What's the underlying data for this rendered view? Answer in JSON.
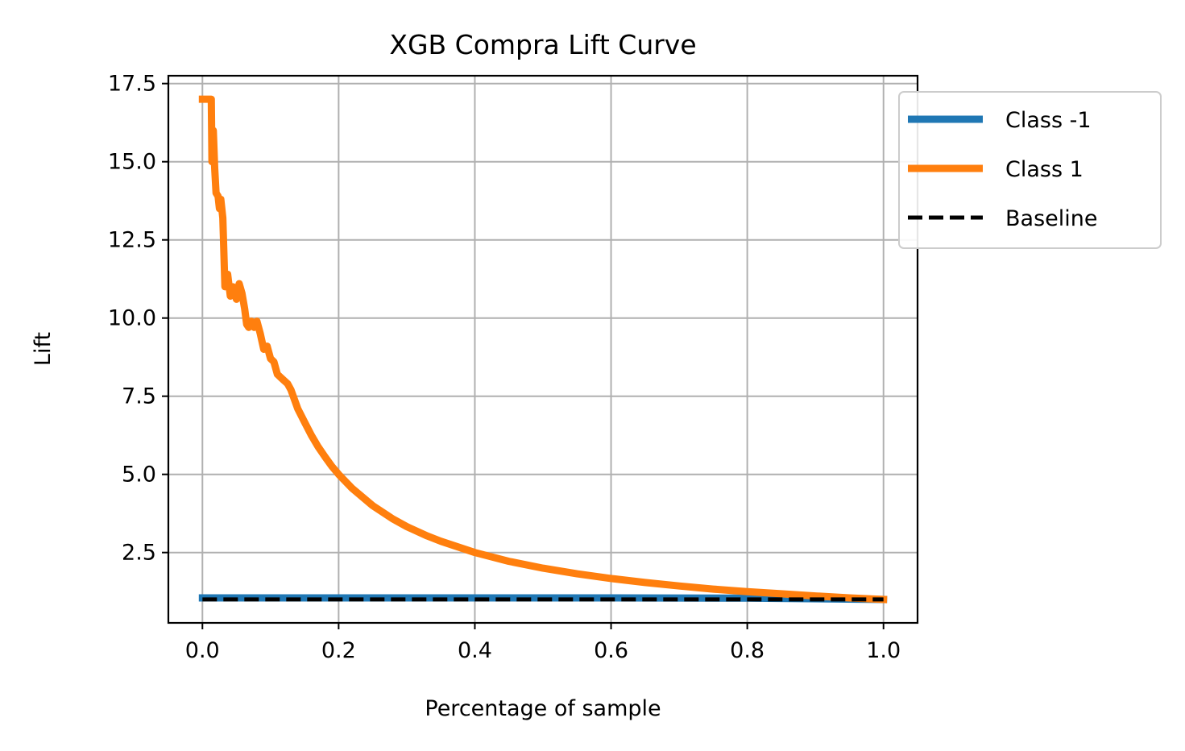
{
  "chart_data": {
    "type": "line",
    "title": "XGB Compra Lift Curve",
    "xlabel": "Percentage of sample",
    "ylabel": "Lift",
    "xlim": [
      -0.05,
      1.05
    ],
    "ylim": [
      0.25,
      17.75
    ],
    "x_ticks": [
      0.0,
      0.2,
      0.4,
      0.6,
      0.8,
      1.0
    ],
    "x_tick_labels": [
      "0.0",
      "0.2",
      "0.4",
      "0.6",
      "0.8",
      "1.0"
    ],
    "y_ticks": [
      2.5,
      5.0,
      7.5,
      10.0,
      12.5,
      15.0,
      17.5
    ],
    "y_tick_labels": [
      "2.5",
      "5.0",
      "7.5",
      "10.0",
      "12.5",
      "15.0",
      "17.5"
    ],
    "grid": true,
    "legend_position": "upper-right, outside plot area",
    "series": [
      {
        "name": "Class -1",
        "color": "#1f77b4",
        "style": "solid",
        "points": [
          [
            0.0,
            1.05
          ],
          [
            0.2,
            1.05
          ],
          [
            0.4,
            1.05
          ],
          [
            0.6,
            1.05
          ],
          [
            0.8,
            1.04
          ],
          [
            1.0,
            1.0
          ]
        ]
      },
      {
        "name": "Class 1",
        "color": "#ff7f0e",
        "style": "solid",
        "points": [
          [
            0.0,
            17.0
          ],
          [
            0.013,
            17.0
          ],
          [
            0.014,
            15.0
          ],
          [
            0.016,
            16.0
          ],
          [
            0.018,
            14.8
          ],
          [
            0.02,
            14.0
          ],
          [
            0.023,
            13.9
          ],
          [
            0.025,
            13.5
          ],
          [
            0.027,
            13.8
          ],
          [
            0.03,
            13.2
          ],
          [
            0.033,
            11.0
          ],
          [
            0.037,
            11.4
          ],
          [
            0.041,
            10.7
          ],
          [
            0.045,
            11.0
          ],
          [
            0.05,
            10.6
          ],
          [
            0.054,
            11.1
          ],
          [
            0.058,
            10.8
          ],
          [
            0.062,
            10.3
          ],
          [
            0.065,
            9.8
          ],
          [
            0.068,
            9.7
          ],
          [
            0.072,
            9.9
          ],
          [
            0.076,
            9.7
          ],
          [
            0.08,
            9.9
          ],
          [
            0.085,
            9.5
          ],
          [
            0.09,
            9.0
          ],
          [
            0.095,
            9.1
          ],
          [
            0.1,
            8.7
          ],
          [
            0.105,
            8.6
          ],
          [
            0.11,
            8.2
          ],
          [
            0.115,
            8.1
          ],
          [
            0.12,
            8.0
          ],
          [
            0.125,
            7.9
          ],
          [
            0.13,
            7.7
          ],
          [
            0.14,
            7.1
          ],
          [
            0.15,
            6.67
          ],
          [
            0.16,
            6.25
          ],
          [
            0.17,
            5.88
          ],
          [
            0.18,
            5.56
          ],
          [
            0.19,
            5.26
          ],
          [
            0.2,
            5.0
          ],
          [
            0.22,
            4.55
          ],
          [
            0.25,
            4.0
          ],
          [
            0.28,
            3.57
          ],
          [
            0.3,
            3.33
          ],
          [
            0.33,
            3.03
          ],
          [
            0.35,
            2.86
          ],
          [
            0.4,
            2.5
          ],
          [
            0.45,
            2.22
          ],
          [
            0.5,
            2.0
          ],
          [
            0.55,
            1.82
          ],
          [
            0.6,
            1.67
          ],
          [
            0.65,
            1.54
          ],
          [
            0.7,
            1.43
          ],
          [
            0.75,
            1.33
          ],
          [
            0.8,
            1.25
          ],
          [
            0.85,
            1.18
          ],
          [
            0.9,
            1.11
          ],
          [
            0.95,
            1.05
          ],
          [
            1.0,
            1.0
          ]
        ]
      },
      {
        "name": "Baseline",
        "color": "#000000",
        "style": "dashed",
        "points": [
          [
            0.0,
            1.0
          ],
          [
            1.0,
            1.0
          ]
        ]
      }
    ]
  }
}
